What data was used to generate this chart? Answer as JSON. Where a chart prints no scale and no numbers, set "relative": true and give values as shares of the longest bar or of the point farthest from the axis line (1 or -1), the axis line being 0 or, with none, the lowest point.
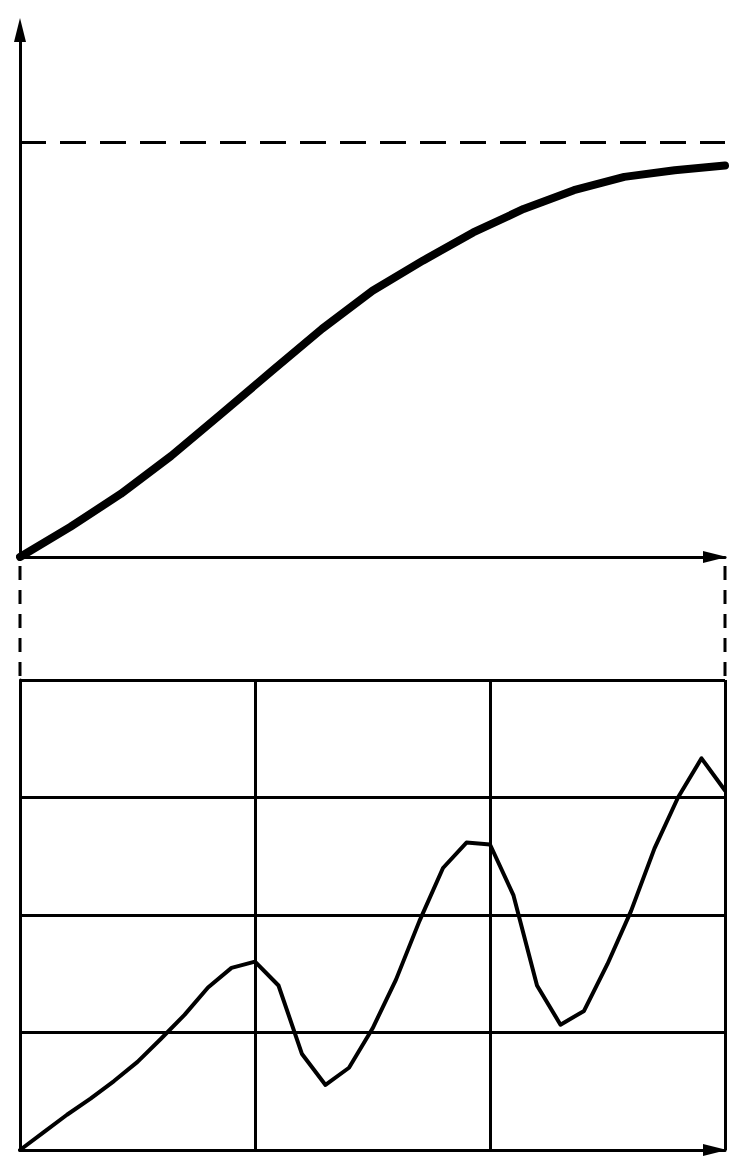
{
  "chart_data": [
    {
      "type": "line",
      "relative": true,
      "categories": [
        null,
        null,
        null,
        null,
        null,
        null,
        null,
        null,
        null,
        null,
        null,
        null,
        null,
        null,
        null
      ],
      "series": [
        {
          "color": "#000000",
          "values": [
            0,
            0.077,
            0.161,
            0.258,
            0.366,
            0.475,
            0.583,
            0.68,
            0.757,
            0.829,
            0.889,
            0.937,
            0.971,
            0.988,
            1
          ]
        }
      ],
      "ref_lines": [
        {
          "axis": "y",
          "value": 1.06,
          "color": "#000000",
          "line_style": "dashed"
        }
      ],
      "grid": false,
      "marker": "none",
      "line_style": "solid"
    },
    {
      "type": "line",
      "relative": true,
      "categories": [
        null,
        null,
        null,
        null,
        null,
        null,
        null,
        null,
        null,
        null,
        null,
        null,
        null,
        null,
        null,
        null,
        null,
        null,
        null,
        null,
        null,
        null,
        null,
        null,
        null,
        null,
        null,
        null,
        null,
        null,
        null
      ],
      "series": [
        {
          "color": "#000000",
          "values": [
            0,
            0.045,
            0.09,
            0.131,
            0.176,
            0.225,
            0.284,
            0.345,
            0.415,
            0.465,
            0.481,
            0.42,
            0.245,
            0.166,
            0.21,
            0.31,
            0.435,
            0.585,
            0.72,
            0.785,
            0.78,
            0.65,
            0.42,
            0.32,
            0.355,
            0.475,
            0.61,
            0.77,
            0.9,
            1,
            0.918
          ]
        }
      ],
      "grid": true,
      "marker": "none",
      "line_style": "solid"
    }
  ]
}
